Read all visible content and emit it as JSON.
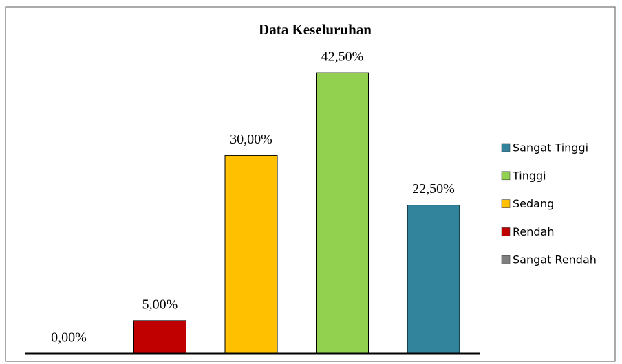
{
  "chart_data": {
    "type": "bar",
    "title": "Data Keseluruhan",
    "categories": [
      "Sangat Rendah",
      "Rendah",
      "Sedang",
      "Tinggi",
      "Sangat Tinggi"
    ],
    "values": [
      0,
      5,
      30,
      42.5,
      22.5
    ],
    "value_labels": [
      "0,00%",
      "5,00%",
      "30,00%",
      "42,50%",
      "22,50%"
    ],
    "colors": [
      "#7f7f7f",
      "#c00000",
      "#ffc000",
      "#92d050",
      "#31849b"
    ],
    "ylim": [
      0,
      50
    ],
    "legend": "right"
  }
}
